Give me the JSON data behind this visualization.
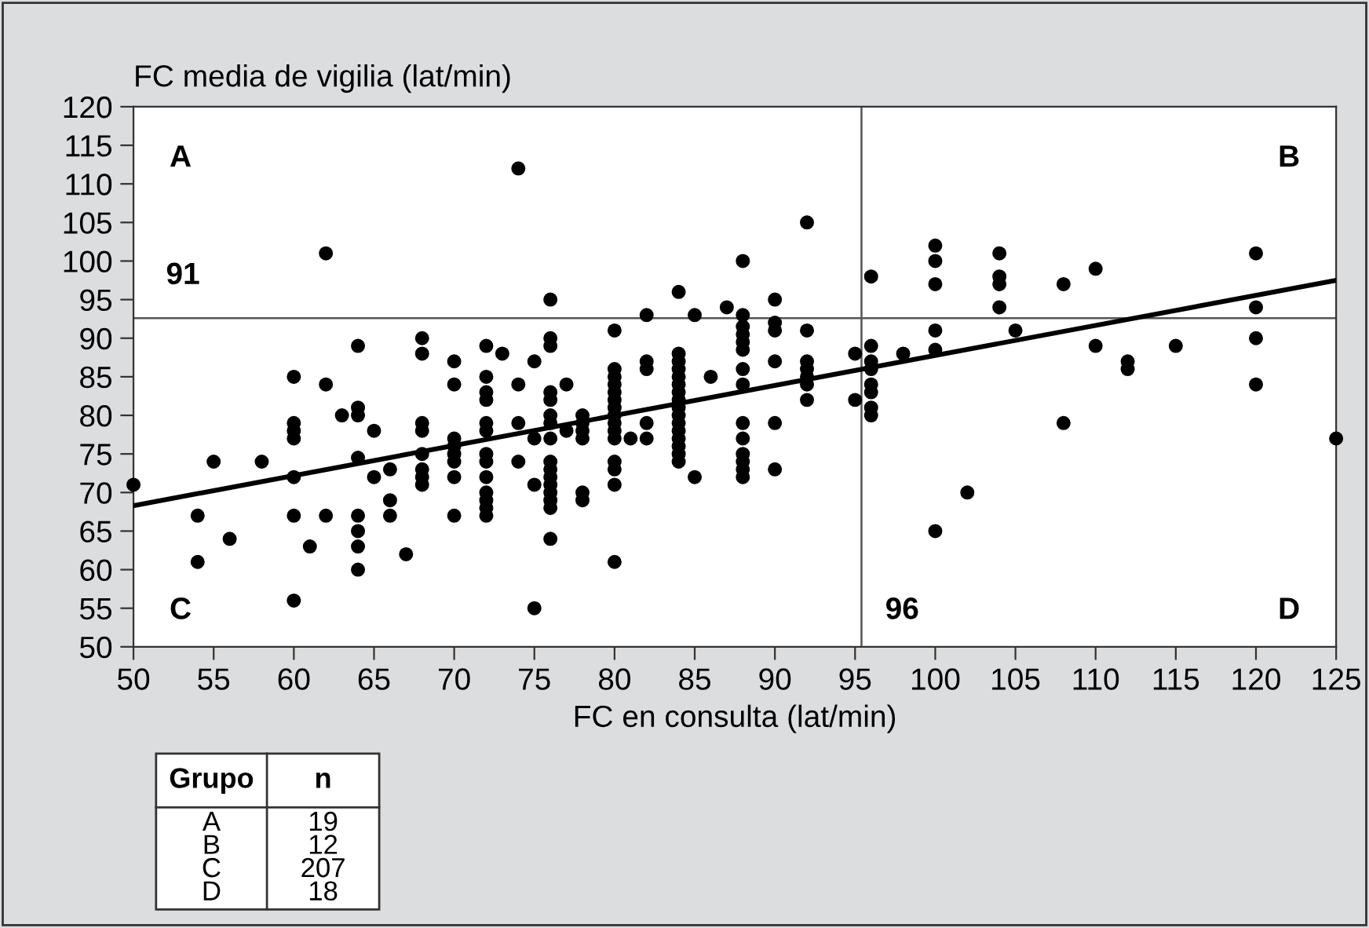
{
  "chart_data": {
    "type": "scatter",
    "xlabel": "FC en consulta (lat/min)",
    "ylabel": "FC media de vigilia (lat/min)",
    "xlim": [
      50,
      125
    ],
    "ylim": [
      50,
      120
    ],
    "xticks": [
      50,
      55,
      60,
      65,
      70,
      75,
      80,
      85,
      90,
      95,
      100,
      105,
      110,
      115,
      120,
      125
    ],
    "yticks": [
      50,
      55,
      60,
      65,
      70,
      75,
      80,
      85,
      90,
      95,
      100,
      105,
      110,
      115,
      120
    ],
    "grid": false,
    "legend": false,
    "marker": "circle",
    "series": [
      {
        "color": "#000000",
        "x": [
          74,
          62,
          64,
          68,
          68,
          70,
          70,
          72,
          73,
          75,
          60,
          62,
          60,
          60,
          60,
          63,
          64,
          64,
          65,
          72,
          72,
          72,
          74,
          74,
          75,
          72,
          72,
          55,
          58,
          60,
          64,
          65,
          66,
          50,
          68,
          68,
          68,
          68,
          68,
          68,
          70,
          70,
          70,
          70,
          70,
          72,
          72,
          72,
          72,
          72,
          72,
          72,
          74,
          75,
          54,
          54,
          56,
          60,
          62,
          61,
          64,
          64,
          64,
          64,
          66,
          66,
          67,
          70,
          60,
          75,
          76,
          76,
          76,
          76,
          76,
          76,
          76,
          76,
          76,
          76,
          76,
          76,
          76,
          76,
          76,
          76,
          77,
          77,
          78,
          78,
          78,
          78,
          78,
          78,
          80,
          80,
          80,
          80,
          80,
          80,
          80,
          80,
          80,
          80,
          80,
          80,
          80,
          80,
          80,
          81,
          82,
          82,
          82,
          82,
          82,
          84,
          84,
          84,
          84,
          84,
          84,
          84,
          84,
          84,
          84,
          84,
          84,
          84,
          84,
          84,
          84,
          85,
          85,
          86,
          87,
          88,
          88,
          88,
          88,
          88,
          88,
          88,
          88,
          88,
          88,
          88,
          88,
          88,
          88,
          90,
          90,
          90,
          90,
          90,
          90,
          92,
          92,
          92,
          92,
          92,
          92,
          92,
          95,
          95,
          96,
          96,
          96,
          96,
          96,
          96,
          96,
          96,
          98,
          100,
          100,
          100,
          100,
          100,
          100,
          102,
          104,
          104,
          104,
          104,
          105,
          108,
          108,
          110,
          110,
          112,
          112,
          115,
          120,
          120,
          120,
          120,
          125
        ],
        "values": [
          112,
          101,
          89,
          90,
          88,
          87,
          84,
          89,
          88,
          87,
          85,
          84,
          79,
          78,
          77,
          80,
          81,
          80,
          78,
          85,
          83,
          82,
          84,
          79,
          77,
          79,
          78,
          74,
          74,
          72,
          74.5,
          72,
          73,
          71,
          79,
          78,
          75,
          73,
          72,
          71,
          77,
          76,
          75,
          74,
          72,
          75,
          74,
          72,
          70,
          69,
          68,
          67,
          74,
          71,
          67,
          61,
          64,
          67,
          67,
          63,
          67,
          65,
          63,
          60,
          69,
          67,
          62,
          67,
          56,
          55,
          95,
          90,
          89,
          83,
          82,
          80,
          79,
          77,
          74,
          73,
          72,
          71,
          70,
          69,
          68,
          64,
          84,
          78,
          80,
          79,
          78,
          77,
          70,
          69,
          91,
          86,
          85,
          84,
          83,
          82,
          81,
          80,
          79,
          78,
          77,
          74,
          73,
          71,
          61,
          77,
          93,
          87,
          86,
          79,
          77,
          96,
          88,
          87,
          86,
          85,
          84,
          83,
          82,
          81,
          80,
          79,
          78,
          77,
          76,
          75,
          74,
          93,
          72,
          85,
          94,
          100,
          93,
          91.5,
          90.5,
          89.5,
          88.5,
          86,
          84,
          79,
          77,
          75,
          74,
          73,
          72,
          95,
          92,
          91,
          87,
          79,
          73,
          105,
          91,
          87,
          86,
          85,
          84,
          82,
          88,
          82,
          98,
          89,
          87,
          86,
          84,
          83,
          81,
          80,
          88,
          102,
          100,
          97,
          91,
          88.5,
          65,
          70,
          101,
          98,
          97,
          94,
          91,
          97,
          79,
          99,
          89,
          87,
          86,
          89,
          101,
          94,
          90,
          84,
          77
        ]
      },
      {
        "type": "line",
        "color": "#000000",
        "marker": "none",
        "line_style": "solid",
        "x": [
          50,
          125
        ],
        "values": [
          68.3,
          97.5
        ]
      }
    ],
    "ref_lines": [
      {
        "axis": "y",
        "value": 92.6,
        "color": "#555555"
      },
      {
        "axis": "x",
        "value": 95.4,
        "color": "#555555"
      }
    ],
    "annotations": [
      "A",
      "B",
      "C",
      "D",
      "91",
      "96",
      "Grupo",
      "n",
      "A",
      "19",
      "B",
      "12",
      "C",
      "207",
      "D",
      "18"
    ]
  }
}
